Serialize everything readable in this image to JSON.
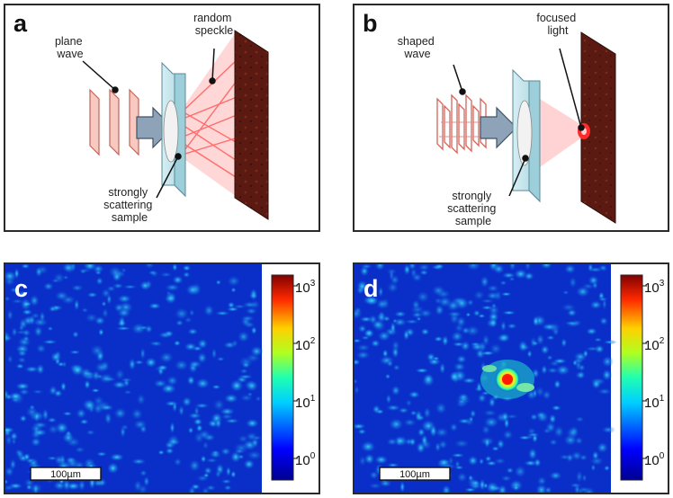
{
  "panels": {
    "a": {
      "label": "a",
      "plane_wave": [
        "plane",
        "wave"
      ],
      "random_speckle": [
        "random",
        "speckle"
      ],
      "sample": [
        "strongly",
        "scattering",
        "sample"
      ]
    },
    "b": {
      "label": "b",
      "shaped_wave": [
        "shaped",
        "wave"
      ],
      "focused_light": [
        "focused",
        "light"
      ],
      "sample": [
        "strongly",
        "scattering",
        "sample"
      ]
    },
    "c": {
      "label": "c",
      "scalebar": "100µm"
    },
    "d": {
      "label": "d",
      "scalebar": "100µm"
    }
  },
  "colorbar": {
    "base": "10",
    "exponents": [
      "3",
      "2",
      "1",
      "0"
    ]
  },
  "colors": {
    "speckle_bg": "#0a2fc8",
    "speckle_hi": "#18d8f0",
    "screen": "#5a1a12",
    "beam": "#ff6a6a",
    "glass": "#bfe3ea",
    "arrow": "#7e96ad",
    "frame": "#2a2a2a"
  }
}
